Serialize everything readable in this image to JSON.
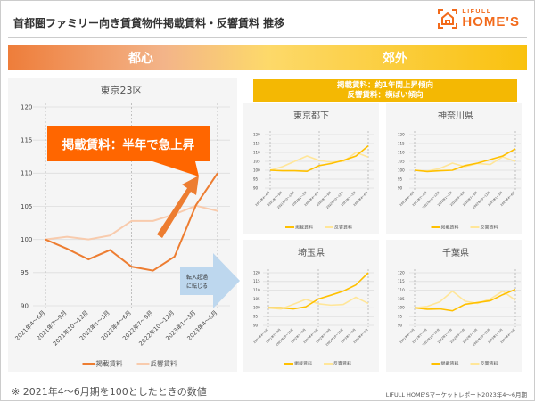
{
  "header": {
    "title": "首都圏ファミリー向き賃貸物件掲載賃料・反響賃料 推移",
    "logo_top": "LIFULL",
    "logo_bottom": "HOME'S"
  },
  "band": {
    "left": "都心",
    "right": "郊外"
  },
  "suburb_note": {
    "line1": "掲載賃料：約1年間上昇傾向",
    "line2": "反響賃料：横ばい傾向"
  },
  "callout": {
    "text": "掲載賃料：半年で急上昇",
    "color": "#ff6600"
  },
  "arrow_note": {
    "line1": "転入超過",
    "line2": "に転じる"
  },
  "footer": {
    "note": "※ 2021年4～6月期を100としたときの数値",
    "source": "LIFULL HOME'Sマーケットレポート2023年4～6月期"
  },
  "colors": {
    "main_listing": "#ed7d31",
    "main_inquiry": "#f8cbad",
    "sub_listing": "#ffc000",
    "sub_inquiry": "#ffe699"
  },
  "chart_data": [
    {
      "type": "line",
      "title": "東京23区",
      "categories": [
        "2021年4～6月",
        "2021年7～9月",
        "2021年10～12月",
        "2022年1～3月",
        "2022年4～6月",
        "2022年7～9月",
        "2022年10～12月",
        "2023年1～3月",
        "2023年4～6月"
      ],
      "yticks": [
        90,
        95,
        100,
        105,
        110,
        115,
        120
      ],
      "ylim": [
        90,
        120
      ],
      "series": [
        {
          "name": "掲載賃料",
          "values": [
            100,
            98.6,
            97,
            98.4,
            95.9,
            95.3,
            97.4,
            105.2,
            110
          ]
        },
        {
          "name": "反響賃料",
          "values": [
            100,
            100.4,
            100,
            100.6,
            102.8,
            102.8,
            103.8,
            105.1,
            104.3
          ]
        }
      ]
    },
    {
      "type": "line",
      "title": "東京都下",
      "categories": [
        "2021年4～6月",
        "2021年7～9月",
        "2021年10～12月",
        "2022年1～3月",
        "2022年4～6月",
        "2022年7～9月",
        "2022年10～12月",
        "2023年1～3月",
        "2023年4～6月"
      ],
      "yticks": [
        90,
        95,
        100,
        105,
        110,
        115,
        120
      ],
      "ylim": [
        90,
        120
      ],
      "series": [
        {
          "name": "掲載賃料",
          "values": [
            100,
            99.7,
            99.7,
            99.4,
            102.6,
            103.8,
            105.6,
            108,
            113.7
          ]
        },
        {
          "name": "反響賃料",
          "values": [
            100,
            102,
            105,
            108,
            105.5,
            104.5,
            105,
            110,
            107.4
          ]
        }
      ]
    },
    {
      "type": "line",
      "title": "神奈川県",
      "categories": [
        "2021年4～6月",
        "2021年7～9月",
        "2021年10～12月",
        "2022年1～3月",
        "2022年4～6月",
        "2022年7～9月",
        "2022年10～12月",
        "2023年1～3月",
        "2023年4～6月"
      ],
      "yticks": [
        90,
        95,
        100,
        105,
        110,
        115,
        120
      ],
      "ylim": [
        90,
        120
      ],
      "series": [
        {
          "name": "掲載賃料",
          "values": [
            100,
            99.3,
            99.7,
            100,
            102.6,
            104,
            106,
            108,
            112
          ]
        },
        {
          "name": "反響賃料",
          "values": [
            100,
            99.5,
            101,
            104,
            102,
            103.8,
            103.2,
            107.5,
            105
          ]
        }
      ]
    },
    {
      "type": "line",
      "title": "埼玉県",
      "categories": [
        "2021年4～6月",
        "2021年7～9月",
        "2021年10～12月",
        "2022年1～3月",
        "2022年4～6月",
        "2022年7～9月",
        "2022年10～12月",
        "2023年1～3月",
        "2023年4～6月"
      ],
      "yticks": [
        90,
        95,
        100,
        105,
        110,
        115,
        120
      ],
      "ylim": [
        90,
        120
      ],
      "series": [
        {
          "name": "掲載賃料",
          "values": [
            100,
            100,
            99.4,
            100.6,
            105,
            107.2,
            109.5,
            113,
            120
          ]
        },
        {
          "name": "反響賃料",
          "values": [
            100,
            99.3,
            102,
            104.8,
            102.3,
            101.5,
            101.9,
            106,
            102.5
          ]
        }
      ]
    },
    {
      "type": "line",
      "title": "千葉県",
      "categories": [
        "2021年4～6月",
        "2021年7～9月",
        "2021年10～12月",
        "2022年1～3月",
        "2022年4～6月",
        "2022年7～9月",
        "2022年10～12月",
        "2023年1～3月",
        "2023年4～6月"
      ],
      "yticks": [
        90,
        95,
        100,
        105,
        110,
        115,
        120
      ],
      "ylim": [
        90,
        120
      ],
      "series": [
        {
          "name": "掲載賃料",
          "values": [
            100,
            99.2,
            99.4,
            98.3,
            102,
            103,
            104,
            107.5,
            110.5
          ]
        },
        {
          "name": "反響賃料",
          "values": [
            100,
            100.8,
            103.4,
            109.5,
            103.8,
            102.5,
            105,
            109.5,
            104.3
          ]
        }
      ]
    }
  ]
}
